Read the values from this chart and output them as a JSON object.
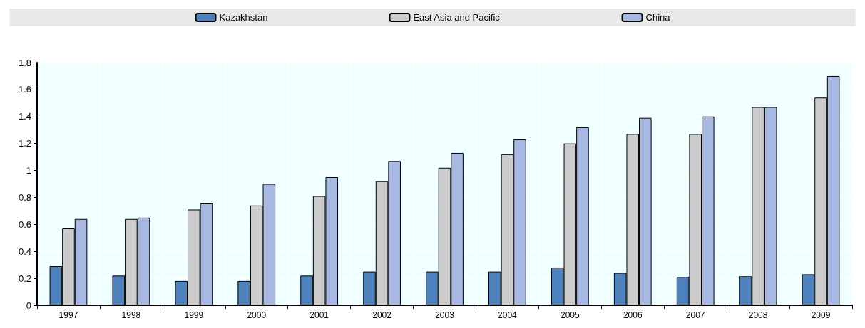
{
  "chart_data": {
    "type": "bar",
    "categories": [
      "1997",
      "1998",
      "1999",
      "2000",
      "2001",
      "2002",
      "2003",
      "2004",
      "2005",
      "2006",
      "2007",
      "2008",
      "2009"
    ],
    "series": [
      {
        "name": "Kazakhstan",
        "color": "#4f81bd",
        "values": [
          0.29,
          0.22,
          0.18,
          0.18,
          0.22,
          0.25,
          0.25,
          0.25,
          0.28,
          0.24,
          0.21,
          0.215,
          0.23
        ]
      },
      {
        "name": "East Asia and Pacific",
        "color": "#cccccc",
        "values": [
          0.57,
          0.64,
          0.71,
          0.74,
          0.81,
          0.92,
          1.02,
          1.12,
          1.2,
          1.27,
          1.27,
          1.47,
          1.54
        ]
      },
      {
        "name": "China",
        "color": "#a7b8e2",
        "values": [
          0.64,
          0.65,
          0.755,
          0.9,
          0.95,
          1.07,
          1.13,
          1.23,
          1.32,
          1.39,
          1.4,
          1.47,
          1.7
        ]
      }
    ],
    "ylim": [
      0,
      1.8
    ],
    "yticks": [
      0,
      0.2,
      0.4,
      0.6,
      0.8,
      1,
      1.2,
      1.4,
      1.6,
      1.8
    ],
    "grid": true,
    "legend": "top"
  }
}
